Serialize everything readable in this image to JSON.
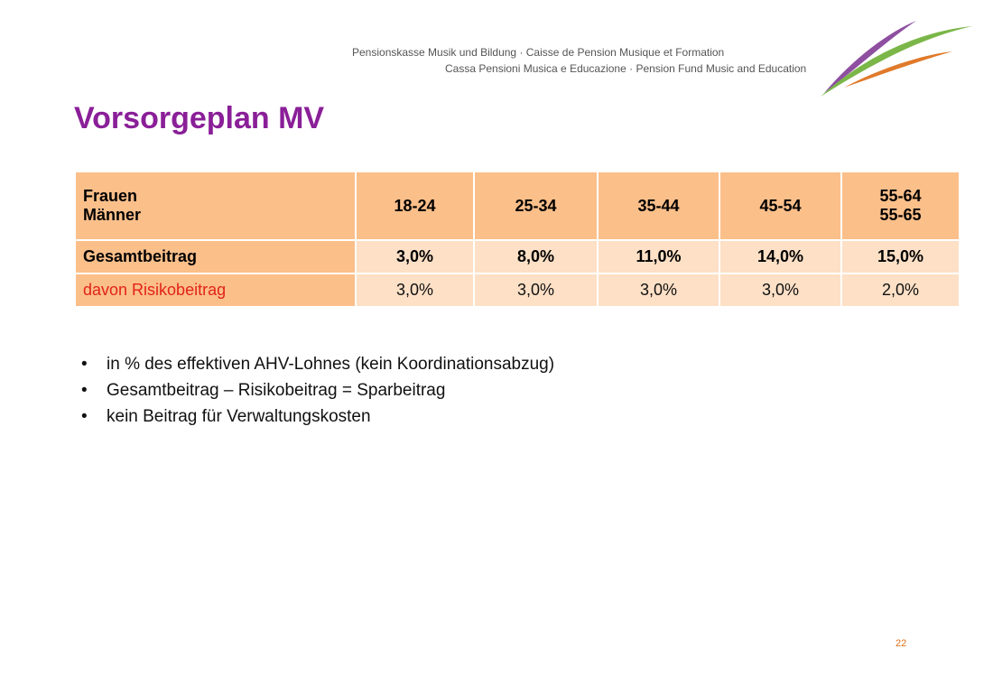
{
  "header": {
    "line1": "Pensionskasse Musik und Bildung · Caisse de Pension Musique et Formation",
    "line2": "Cassa Pensioni Musica e Educazione · Pension Fund Music and Education"
  },
  "title": "Vorsorgeplan MV",
  "table": {
    "header": [
      [
        "Frauen",
        "Männer"
      ],
      [
        "18-24"
      ],
      [
        "25-34"
      ],
      [
        "35-44"
      ],
      [
        "45-54"
      ],
      [
        "55-64",
        "55-65"
      ]
    ],
    "rows": [
      [
        "Gesamtbeitrag",
        "3,0%",
        "8,0%",
        "11,0%",
        "14,0%",
        "15,0%"
      ],
      [
        "davon Risikobeitrag",
        "3,0%",
        "3,0%",
        "3,0%",
        "3,0%",
        "2,0%"
      ]
    ]
  },
  "bullets": [
    "in % des effektiven AHV-Lohnes (kein Koordinationsabzug)",
    "Gesamtbeitrag – Risikobeitrag = Sparbeitrag",
    "kein Beitrag für Verwaltungskosten"
  ],
  "page_number": "22"
}
